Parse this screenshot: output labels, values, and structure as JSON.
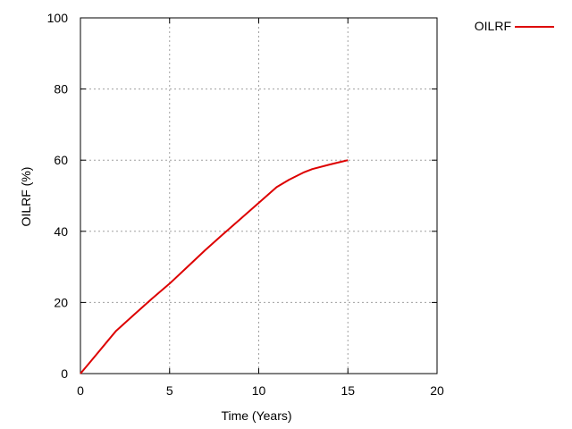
{
  "chart_data": {
    "type": "line",
    "xlabel": "Time (Years)",
    "ylabel": "OILRF (%)",
    "xlim": [
      0,
      20
    ],
    "ylim": [
      0,
      100
    ],
    "xticks": [
      0,
      5,
      10,
      15,
      20
    ],
    "yticks": [
      0,
      20,
      40,
      60,
      80,
      100
    ],
    "grid": true,
    "legend_position": "top-right-outside",
    "series": [
      {
        "name": "OILRF",
        "color": "#dd0000",
        "x": [
          0,
          0.5,
          1,
          1.5,
          2,
          3,
          4,
          5,
          6,
          7,
          8,
          9,
          10,
          11,
          11.7,
          12.5,
          13,
          14,
          15
        ],
        "y": [
          0,
          3,
          6,
          9,
          12,
          16.5,
          21,
          25.3,
          30,
          34.7,
          39.2,
          43.6,
          48,
          52.4,
          54.5,
          56.5,
          57.5,
          58.8,
          60
        ]
      }
    ]
  }
}
